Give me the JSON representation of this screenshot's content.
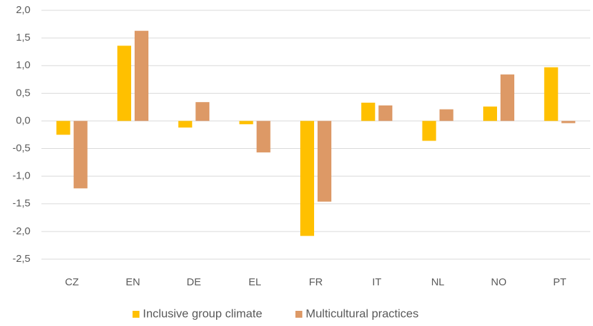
{
  "chart_data": {
    "type": "bar",
    "categories": [
      "CZ",
      "EN",
      "DE",
      "EL",
      "FR",
      "IT",
      "NL",
      "NO",
      "PT"
    ],
    "series": [
      {
        "name": "Inclusive group climate",
        "color": "#ffc000",
        "values": [
          -0.25,
          1.36,
          -0.12,
          -0.06,
          -2.08,
          0.33,
          -0.36,
          0.26,
          0.97
        ]
      },
      {
        "name": "Multicultural practices",
        "color": "#dd9966",
        "values": [
          -1.22,
          1.63,
          0.34,
          -0.57,
          -1.46,
          0.28,
          0.21,
          0.84,
          -0.04
        ]
      }
    ],
    "ylim": [
      -2.5,
      2.0
    ],
    "yticks": [
      {
        "value": -2.5,
        "label": "-2,5"
      },
      {
        "value": -2,
        "label": "-2,0"
      },
      {
        "value": -1.5,
        "label": "-1,5"
      },
      {
        "value": -1,
        "label": "-1,0"
      },
      {
        "value": -0.5,
        "label": "-0,5"
      },
      {
        "value": 0,
        "label": "0,0"
      },
      {
        "value": 0.5,
        "label": "0,5"
      },
      {
        "value": 1,
        "label": "1,0"
      },
      {
        "value": 1.5,
        "label": "1,5"
      },
      {
        "value": 2,
        "label": "2,0"
      }
    ],
    "grid": true,
    "legend": "bottom"
  }
}
